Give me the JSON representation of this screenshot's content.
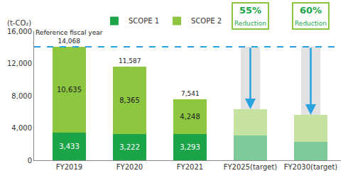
{
  "chart_data": {
    "type": "bar",
    "stacked": true,
    "y_label": "(t-CO₂)",
    "categories": [
      "FY2019",
      "FY2020",
      "FY2021",
      "FY2025(target)",
      "FY2030(target)"
    ],
    "series": [
      {
        "name": "SCOPE 1",
        "color": "#1ba548",
        "colors": [
          "#1ba548",
          "#1ba548",
          "#1ba548",
          "#7fc99a",
          "#7fc99a"
        ],
        "values": [
          3433,
          3222,
          3293,
          3100,
          2300
        ],
        "value_labels": [
          "3,433",
          "3,222",
          "3,293",
          null,
          null
        ]
      },
      {
        "name": "SCOPE 2",
        "color": "#8dc63f",
        "colors": [
          "#8dc63f",
          "#8dc63f",
          "#8dc63f",
          "#c6e2a0",
          "#c6e2a0"
        ],
        "values": [
          10635,
          8365,
          4248,
          3230,
          3330
        ],
        "value_labels": [
          "10,635",
          "8,365",
          "4,248",
          null,
          null
        ]
      }
    ],
    "totals": [
      14068,
      11587,
      7541,
      null,
      null
    ],
    "total_labels": [
      "14,068",
      "11,587",
      "7,541",
      null,
      null
    ],
    "reference_line": 14068,
    "reference_category": "FY2019",
    "reference_label": "Reference fiscal year",
    "reductions": [
      {
        "category": "FY2025(target)",
        "value": 55,
        "label": "55%",
        "text": "Reduction"
      },
      {
        "category": "FY2030(target)",
        "value": 60,
        "label": "60%",
        "text": "Reduction"
      }
    ],
    "ylim": [
      0,
      16000
    ],
    "yticks": [
      0,
      {
        "value": 4000,
        "label": "4,000"
      },
      {
        "value": 8000,
        "label": "8,000"
      },
      {
        "value": 12000,
        "label": "12,000"
      },
      {
        "value": 16000,
        "label": "16,000"
      }
    ],
    "grid": false,
    "legend": "top",
    "data_labels": true
  }
}
